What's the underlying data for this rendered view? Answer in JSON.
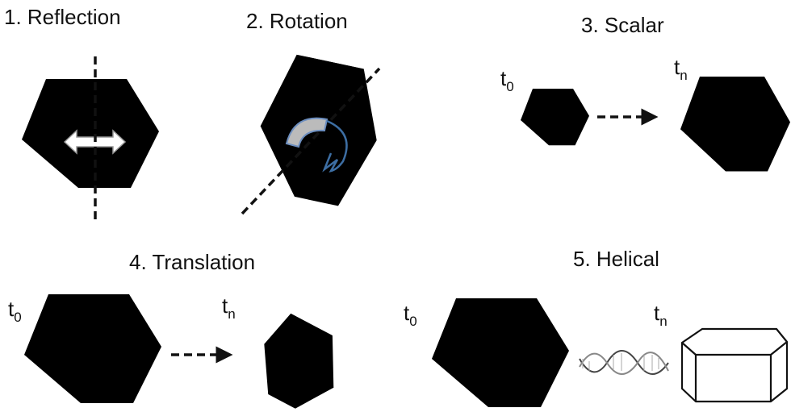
{
  "panels": [
    {
      "title": "1. Reflection"
    },
    {
      "title": "2. Rotation"
    },
    {
      "title": "3. Scalar",
      "labels": [
        {
          "main": "t",
          "sub": "0"
        },
        {
          "main": "t",
          "sub": "n"
        }
      ]
    },
    {
      "title": "4. Translation",
      "labels": [
        {
          "main": "t",
          "sub": "0"
        },
        {
          "main": "t",
          "sub": "n"
        }
      ]
    },
    {
      "title": "5. Helical",
      "labels": [
        {
          "main": "t",
          "sub": "0"
        },
        {
          "main": "t",
          "sub": "n"
        }
      ]
    }
  ]
}
